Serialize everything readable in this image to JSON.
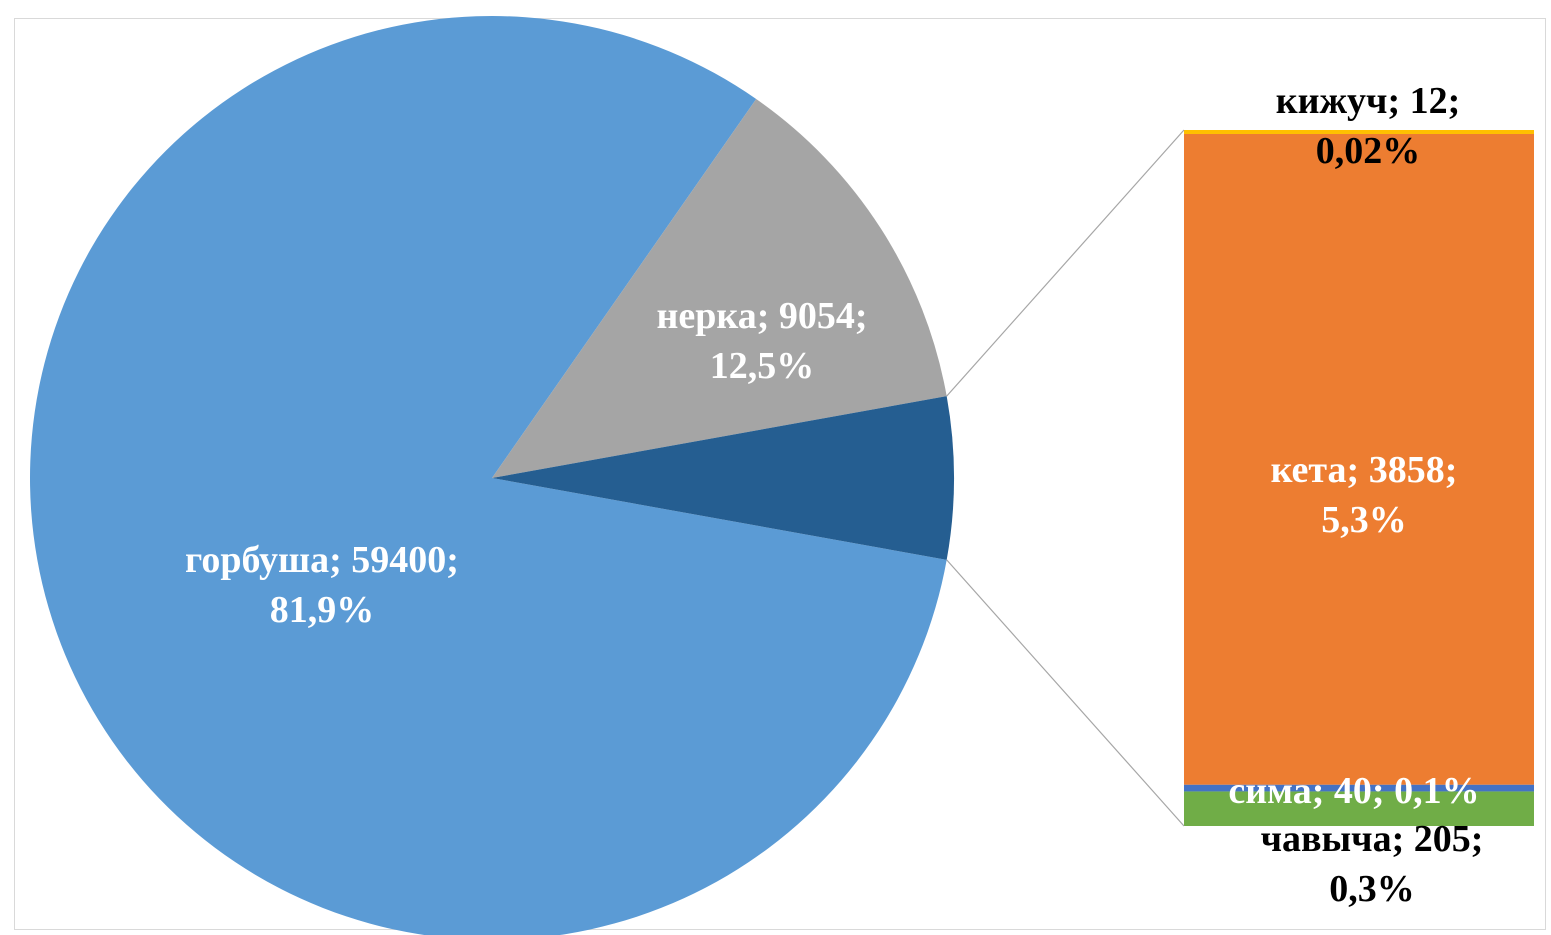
{
  "chart_data": {
    "type": "pie",
    "subtype": "bar-of-pie",
    "title": "",
    "main_slices": [
      {
        "name": "горбуша",
        "value": 59400,
        "percent_label": "81,9%",
        "color": "#5B9BD5",
        "label_color": "#ffffff",
        "line1": "горбуша; 59400;",
        "line2": "81,9%"
      },
      {
        "name": "нерка",
        "value": 9054,
        "percent_label": "12,5%",
        "color": "#A5A5A5",
        "label_color": "#ffffff",
        "line1": "нерка; 9054;",
        "line2": "12,5%"
      }
    ],
    "other_slice": {
      "value": 4115,
      "color": "#255E91"
    },
    "bar_segments": [
      {
        "name": "чавыча",
        "value": 205,
        "percent_label": "0,3%",
        "color": "#70AD47",
        "label_color": "#000000",
        "line1": "чавыча; 205;",
        "line2": "0,3%"
      },
      {
        "name": "сима",
        "value": 40,
        "percent_label": "0,1%",
        "color": "#4472C4",
        "label_color": "#ffffff",
        "line1": "сима; 40; 0,1%",
        "line2": ""
      },
      {
        "name": "кета",
        "value": 3858,
        "percent_label": "5,3%",
        "color": "#ED7D31",
        "label_color": "#ffffff",
        "line1": "кета; 3858;",
        "line2": "5,3%"
      },
      {
        "name": "кижуч",
        "value": 12,
        "percent_label": "0,02%",
        "color": "#FFC000",
        "label_color": "#000000",
        "line1": "кижуч; 12;",
        "line2": "0,02%"
      }
    ]
  }
}
